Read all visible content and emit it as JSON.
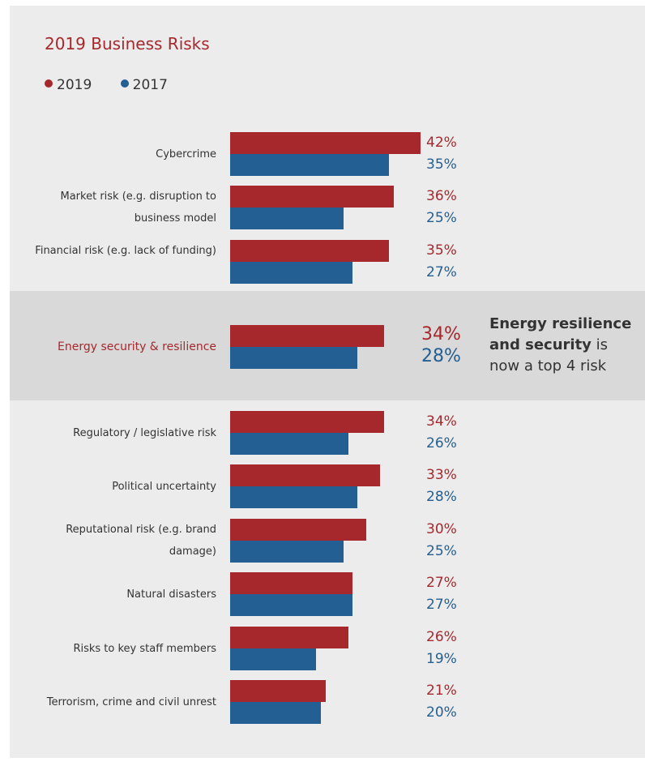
{
  "chart_data": {
    "type": "bar",
    "orientation": "horizontal",
    "title": "2019 Business Risks",
    "legend": [
      {
        "label": "2019",
        "color": "#a6282d"
      },
      {
        "label": "2017",
        "color": "#235f93"
      }
    ],
    "categories": [
      "Cybercrime",
      "Market risk (e.g. disruption to business model",
      "Financial risk (e.g. lack of funding)",
      "Energy security & resilience",
      "Regulatory / legislative risk",
      "Political uncertainty",
      "Reputational risk (e.g. brand damage)",
      "Natural disasters",
      "Risks to key staff members",
      "Terrorism, crime and civil unrest"
    ],
    "series": [
      {
        "name": "2019",
        "color": "#a6282d",
        "values": [
          42,
          36,
          35,
          34,
          34,
          33,
          30,
          27,
          26,
          21
        ]
      },
      {
        "name": "2017",
        "color": "#235f93",
        "values": [
          35,
          25,
          27,
          28,
          26,
          28,
          25,
          27,
          19,
          20
        ]
      }
    ],
    "value_labels_2019": [
      "42%",
      "36%",
      "35%",
      "34%",
      "34%",
      "33%",
      "30%",
      "27%",
      "26%",
      "21%"
    ],
    "value_labels_2017": [
      "35%",
      "25%",
      "27%",
      "28%",
      "26%",
      "28%",
      "25%",
      "27%",
      "19%",
      "20%"
    ],
    "highlight_category": "Energy security & resilience",
    "grid": false,
    "legend_position": "top-left"
  },
  "callout": {
    "bold": "Energy resilience and security",
    "rest": " is now a top 4 risk"
  }
}
